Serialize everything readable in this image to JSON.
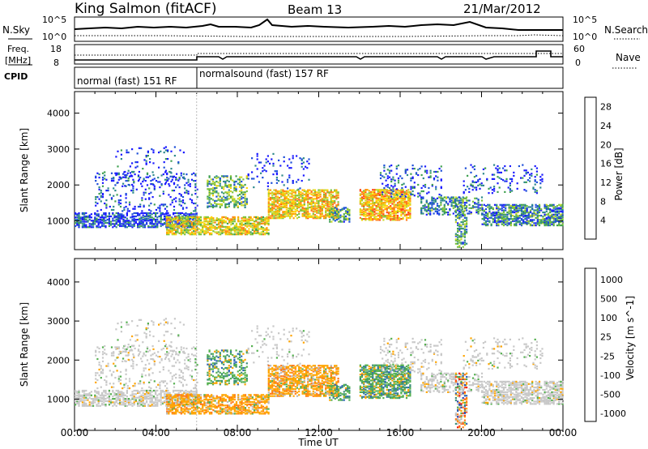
{
  "header": {
    "station": "King Salmon (fitACF)",
    "beam": "Beam 13",
    "date": "21/Mar/2012"
  },
  "top_panels": {
    "nsky_label": "N.Sky",
    "nsky_ticks": [
      "10^5",
      "10^0"
    ],
    "nsearch_label": "N.Search",
    "nsearch_ticks": [
      "10^5",
      "10^0"
    ],
    "freq_label_1": "Freq.",
    "freq_label_2": "[MHz]",
    "freq_ticks": [
      "18",
      "8"
    ],
    "nave_label": "Nave",
    "nave_ticks": [
      "60",
      "0"
    ],
    "cpid_label": "CPID",
    "cpid_modes": [
      {
        "label": "normal (fast) 151 RF",
        "start_h": 0,
        "end_h": 6
      },
      {
        "label": "normalsound (fast) 157 RF",
        "start_h": 6,
        "end_h": 24
      }
    ]
  },
  "chart_data": [
    {
      "type": "heatmap",
      "panel": "power",
      "xlabel": "Time UT",
      "ylabel": "Slant Range [km]",
      "xlim": [
        0,
        24
      ],
      "ylim": [
        200,
        4600
      ],
      "x_ticks": [
        "00:00",
        "04:00",
        "08:00",
        "12:00",
        "16:00",
        "20:00",
        "00:00"
      ],
      "y_ticks": [
        1000,
        2000,
        3000,
        4000
      ],
      "colorbar": {
        "label": "Power [dB]",
        "ticks": [
          "4",
          "8",
          "12",
          "16",
          "20",
          "24",
          "28"
        ],
        "range": [
          0,
          30
        ],
        "colors": [
          "#1a1aff",
          "#1e4fd8",
          "#2f8a8a",
          "#3fa050",
          "#7cc23a",
          "#c9d82a",
          "#ffd400",
          "#ffa500",
          "#ff7a1a",
          "#ff4a1a",
          "#ee1111"
        ]
      }
    },
    {
      "type": "heatmap",
      "panel": "velocity",
      "xlabel": "Time UT",
      "ylabel": "Slant Range [km]",
      "xlim": [
        0,
        24
      ],
      "ylim": [
        200,
        4600
      ],
      "x_ticks": [
        "00:00",
        "04:00",
        "08:00",
        "12:00",
        "16:00",
        "20:00",
        "00:00"
      ],
      "y_ticks": [
        1000,
        2000,
        3000,
        4000
      ],
      "colorbar": {
        "label": "Velocity [m s^-1]",
        "ticks": [
          "1000",
          "500",
          "100",
          "25",
          "-25",
          "-100",
          "-500",
          "-1000"
        ],
        "colors": [
          "#2a3fb0",
          "#2f66b8",
          "#3b8f78",
          "#55b050",
          "#c8c8c8",
          "#b8b8b8",
          "#ffa500",
          "#ff7a1a",
          "#ff4a1a",
          "#ee1111"
        ]
      }
    }
  ]
}
